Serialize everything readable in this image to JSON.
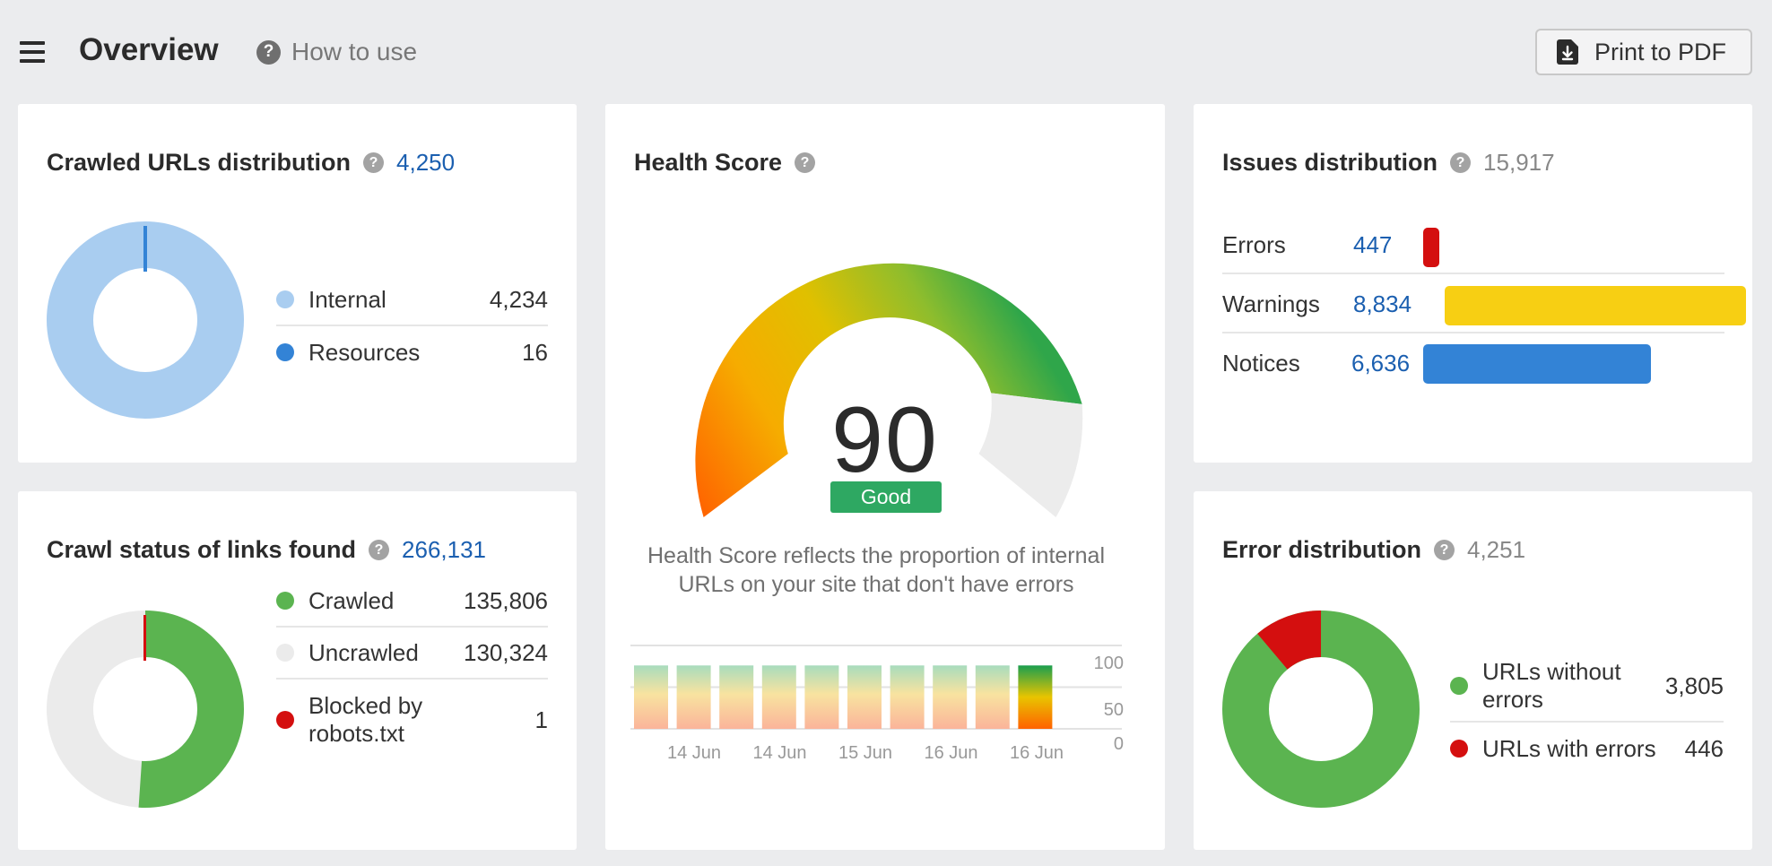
{
  "header": {
    "title": "Overview",
    "how_to_use": "How to use",
    "print_label": "Print to PDF"
  },
  "crawled_urls": {
    "title": "Crawled URLs distribution",
    "count": "4,250",
    "legend": [
      {
        "label": "Internal",
        "value": "4,234",
        "color": "#a9cdf0"
      },
      {
        "label": "Resources",
        "value": "16",
        "color": "#3383d6"
      }
    ]
  },
  "crawl_status": {
    "title": "Crawl status of links found",
    "count": "266,131",
    "legend": [
      {
        "label": "Crawled",
        "value": "135,806",
        "color": "#5bb450"
      },
      {
        "label": "Uncrawled",
        "value": "130,324",
        "color": "#ebebeb"
      },
      {
        "label": "Blocked by robots.txt",
        "value": "1",
        "color": "#d40f0f"
      }
    ]
  },
  "health_score": {
    "title": "Health Score",
    "score": "90",
    "badge": "Good",
    "badge_color": "#2ea862",
    "description": "Health Score reflects the proportion of internal URLs on your site that don't have errors",
    "history": {
      "x_labels": [
        "14 Jun",
        "14 Jun",
        "15 Jun",
        "16 Jun",
        "16 Jun"
      ],
      "y_ticks": [
        "100",
        "50",
        "0"
      ],
      "bar_values": [
        90,
        90,
        90,
        90,
        90,
        90,
        90,
        90,
        90,
        90
      ]
    }
  },
  "issues": {
    "title": "Issues distribution",
    "count": "15,917",
    "rows": [
      {
        "label": "Errors",
        "value": "447",
        "color": "#d40f0f"
      },
      {
        "label": "Warnings",
        "value": "8,834",
        "color": "#f7cf13"
      },
      {
        "label": "Notices",
        "value": "6,636",
        "color": "#3383d6"
      }
    ]
  },
  "error_dist": {
    "title": "Error distribution",
    "count": "4,251",
    "legend": [
      {
        "label": "URLs without errors",
        "value": "3,805",
        "color": "#5bb450"
      },
      {
        "label": "URLs with errors",
        "value": "446",
        "color": "#d40f0f"
      }
    ]
  }
}
